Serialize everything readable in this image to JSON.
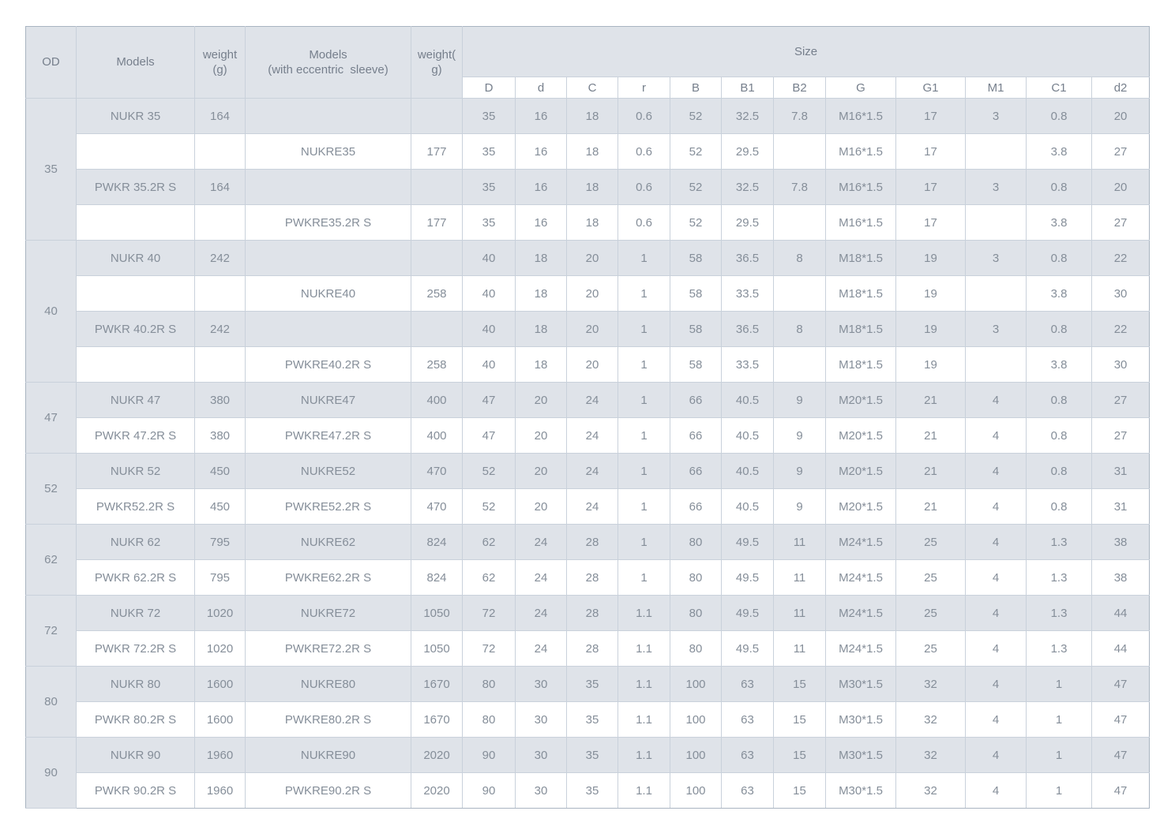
{
  "colors": {
    "header_bg": "#dfe3e9",
    "row_shaded_bg": "#dfe3e9",
    "row_white_bg": "#ffffff",
    "border": "#c9d1db",
    "border_strong": "#a9b4c1",
    "text": "#858e99",
    "header_text": "#767f8c"
  },
  "table": {
    "header": {
      "od": "OD",
      "models": "Models",
      "weight": "weight\n(g)",
      "models_ecc": "Models\n(with eccentric  sleeve)",
      "weight_ecc": "weight(\ng)",
      "size": "Size",
      "size_columns": [
        "D",
        "d",
        "C",
        "r",
        "B",
        "B1",
        "B2",
        "G",
        "G1",
        "M1",
        "C1",
        "d2"
      ]
    },
    "groups": [
      {
        "od": "35",
        "rows": [
          {
            "model": "NUKR 35",
            "weight": "164",
            "model_ecc": "",
            "weight_ecc": "",
            "size": [
              "35",
              "16",
              "18",
              "0.6",
              "52",
              "32.5",
              "7.8",
              "M16*1.5",
              "17",
              "3",
              "0.8",
              "20"
            ]
          },
          {
            "model": "",
            "weight": "",
            "model_ecc": "NUKRE35",
            "weight_ecc": "177",
            "size": [
              "35",
              "16",
              "18",
              "0.6",
              "52",
              "29.5",
              "",
              "M16*1.5",
              "17",
              "",
              "3.8",
              "27"
            ]
          },
          {
            "model": "PWKR 35.2R S",
            "weight": "164",
            "model_ecc": "",
            "weight_ecc": "",
            "size": [
              "35",
              "16",
              "18",
              "0.6",
              "52",
              "32.5",
              "7.8",
              "M16*1.5",
              "17",
              "3",
              "0.8",
              "20"
            ]
          },
          {
            "model": "",
            "weight": "",
            "model_ecc": "PWKRE35.2R S",
            "weight_ecc": "177",
            "size": [
              "35",
              "16",
              "18",
              "0.6",
              "52",
              "29.5",
              "",
              "M16*1.5",
              "17",
              "",
              "3.8",
              "27"
            ]
          }
        ]
      },
      {
        "od": "40",
        "rows": [
          {
            "model": "NUKR 40",
            "weight": "242",
            "model_ecc": "",
            "weight_ecc": "",
            "size": [
              "40",
              "18",
              "20",
              "1",
              "58",
              "36.5",
              "8",
              "M18*1.5",
              "19",
              "3",
              "0.8",
              "22"
            ]
          },
          {
            "model": "",
            "weight": "",
            "model_ecc": "NUKRE40",
            "weight_ecc": "258",
            "size": [
              "40",
              "18",
              "20",
              "1",
              "58",
              "33.5",
              "",
              "M18*1.5",
              "19",
              "",
              "3.8",
              "30"
            ]
          },
          {
            "model": "PWKR 40.2R S",
            "weight": "242",
            "model_ecc": "",
            "weight_ecc": "",
            "size": [
              "40",
              "18",
              "20",
              "1",
              "58",
              "36.5",
              "8",
              "M18*1.5",
              "19",
              "3",
              "0.8",
              "22"
            ]
          },
          {
            "model": "",
            "weight": "",
            "model_ecc": "PWKRE40.2R S",
            "weight_ecc": "258",
            "size": [
              "40",
              "18",
              "20",
              "1",
              "58",
              "33.5",
              "",
              "M18*1.5",
              "19",
              "",
              "3.8",
              "30"
            ]
          }
        ]
      },
      {
        "od": "47",
        "rows": [
          {
            "model": "NUKR 47",
            "weight": "380",
            "model_ecc": "NUKRE47",
            "weight_ecc": "400",
            "size": [
              "47",
              "20",
              "24",
              "1",
              "66",
              "40.5",
              "9",
              "M20*1.5",
              "21",
              "4",
              "0.8",
              "27"
            ]
          },
          {
            "model": "PWKR 47.2R S",
            "weight": "380",
            "model_ecc": "PWKRE47.2R S",
            "weight_ecc": "400",
            "size": [
              "47",
              "20",
              "24",
              "1",
              "66",
              "40.5",
              "9",
              "M20*1.5",
              "21",
              "4",
              "0.8",
              "27"
            ]
          }
        ]
      },
      {
        "od": "52",
        "rows": [
          {
            "model": "NUKR 52",
            "weight": "450",
            "model_ecc": "NUKRE52",
            "weight_ecc": "470",
            "size": [
              "52",
              "20",
              "24",
              "1",
              "66",
              "40.5",
              "9",
              "M20*1.5",
              "21",
              "4",
              "0.8",
              "31"
            ]
          },
          {
            "model": "PWKR52.2R S",
            "weight": "450",
            "model_ecc": "PWKRE52.2R S",
            "weight_ecc": "470",
            "size": [
              "52",
              "20",
              "24",
              "1",
              "66",
              "40.5",
              "9",
              "M20*1.5",
              "21",
              "4",
              "0.8",
              "31"
            ]
          }
        ]
      },
      {
        "od": "62",
        "rows": [
          {
            "model": "NUKR 62",
            "weight": "795",
            "model_ecc": "NUKRE62",
            "weight_ecc": "824",
            "size": [
              "62",
              "24",
              "28",
              "1",
              "80",
              "49.5",
              "11",
              "M24*1.5",
              "25",
              "4",
              "1.3",
              "38"
            ]
          },
          {
            "model": "PWKR 62.2R S",
            "weight": "795",
            "model_ecc": "PWKRE62.2R S",
            "weight_ecc": "824",
            "size": [
              "62",
              "24",
              "28",
              "1",
              "80",
              "49.5",
              "11",
              "M24*1.5",
              "25",
              "4",
              "1.3",
              "38"
            ]
          }
        ]
      },
      {
        "od": "72",
        "rows": [
          {
            "model": "NUKR 72",
            "weight": "1020",
            "model_ecc": "NUKRE72",
            "weight_ecc": "1050",
            "size": [
              "72",
              "24",
              "28",
              "1.1",
              "80",
              "49.5",
              "11",
              "M24*1.5",
              "25",
              "4",
              "1.3",
              "44"
            ]
          },
          {
            "model": "PWKR 72.2R S",
            "weight": "1020",
            "model_ecc": "PWKRE72.2R S",
            "weight_ecc": "1050",
            "size": [
              "72",
              "24",
              "28",
              "1.1",
              "80",
              "49.5",
              "11",
              "M24*1.5",
              "25",
              "4",
              "1.3",
              "44"
            ]
          }
        ]
      },
      {
        "od": "80",
        "rows": [
          {
            "model": "NUKR 80",
            "weight": "1600",
            "model_ecc": "NUKRE80",
            "weight_ecc": "1670",
            "size": [
              "80",
              "30",
              "35",
              "1.1",
              "100",
              "63",
              "15",
              "M30*1.5",
              "32",
              "4",
              "1",
              "47"
            ]
          },
          {
            "model": "PWKR 80.2R S",
            "weight": "1600",
            "model_ecc": "PWKRE80.2R S",
            "weight_ecc": "1670",
            "size": [
              "80",
              "30",
              "35",
              "1.1",
              "100",
              "63",
              "15",
              "M30*1.5",
              "32",
              "4",
              "1",
              "47"
            ]
          }
        ]
      },
      {
        "od": "90",
        "rows": [
          {
            "model": "NUKR 90",
            "weight": "1960",
            "model_ecc": "NUKRE90",
            "weight_ecc": "2020",
            "size": [
              "90",
              "30",
              "35",
              "1.1",
              "100",
              "63",
              "15",
              "M30*1.5",
              "32",
              "4",
              "1",
              "47"
            ]
          },
          {
            "model": "PWKR 90.2R S",
            "weight": "1960",
            "model_ecc": "PWKRE90.2R S",
            "weight_ecc": "2020",
            "size": [
              "90",
              "30",
              "35",
              "1.1",
              "100",
              "63",
              "15",
              "M30*1.5",
              "32",
              "4",
              "1",
              "47"
            ]
          }
        ]
      }
    ]
  }
}
